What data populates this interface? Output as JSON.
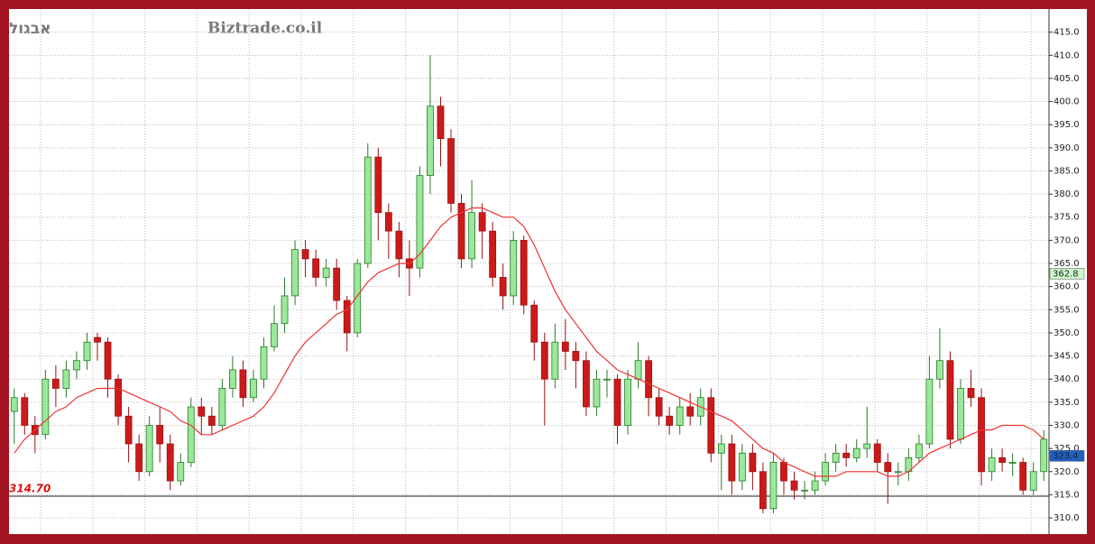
{
  "chart_data": {
    "type": "candlestick",
    "title": "אבגול",
    "subtitle": "Biztrade.co.il",
    "up_color": "#9be89b",
    "down_color": "#cc1a1a",
    "open": [
      333,
      336,
      330,
      328,
      340,
      338,
      342,
      344,
      349,
      348,
      340,
      332,
      326,
      320,
      330,
      326,
      318,
      322,
      334,
      332,
      330,
      338,
      342,
      336,
      340,
      347,
      352,
      358,
      368,
      366,
      362,
      364,
      357,
      350,
      365,
      388,
      376,
      372,
      366,
      364,
      384,
      399,
      392,
      378,
      366,
      376,
      372,
      362,
      358,
      370,
      356,
      348,
      340,
      348,
      346,
      344,
      334,
      340,
      340,
      330,
      340,
      344,
      336,
      332,
      330,
      334,
      332,
      336,
      324,
      326,
      318,
      324,
      320,
      312,
      322,
      318,
      316,
      316,
      318,
      322,
      324,
      323,
      325,
      326,
      322,
      320,
      320,
      323,
      326,
      340,
      344,
      327,
      338,
      336,
      320,
      323,
      322,
      322,
      316,
      320
    ],
    "high": [
      338,
      337,
      332,
      342,
      343,
      344,
      346,
      350,
      350,
      349,
      341,
      334,
      328,
      332,
      334,
      328,
      324,
      336,
      336,
      334,
      340,
      345,
      344,
      342,
      349,
      356,
      362,
      370,
      370,
      368,
      366,
      366,
      358,
      366,
      391,
      390,
      378,
      374,
      370,
      386,
      410,
      401,
      394,
      380,
      383,
      378,
      374,
      365,
      372,
      371,
      357,
      350,
      352,
      353,
      348,
      346,
      342,
      342,
      341,
      342,
      348,
      345,
      338,
      334,
      336,
      337,
      338,
      338,
      328,
      328,
      326,
      326,
      322,
      324,
      323,
      320,
      318,
      320,
      324,
      326,
      326,
      327,
      334,
      327,
      324,
      322,
      325,
      328,
      345,
      351,
      346,
      340,
      342,
      338,
      325,
      325,
      324,
      323,
      322,
      329
    ],
    "low": [
      326,
      328,
      324,
      327,
      334,
      336,
      340,
      342,
      344,
      336,
      330,
      322,
      318,
      319,
      322,
      316,
      317,
      321,
      328,
      328,
      329,
      336,
      334,
      335,
      338,
      346,
      350,
      356,
      362,
      360,
      360,
      355,
      346,
      349,
      364,
      370,
      366,
      362,
      358,
      362,
      380,
      386,
      376,
      364,
      364,
      366,
      360,
      355,
      356,
      354,
      344,
      330,
      338,
      342,
      338,
      332,
      332,
      336,
      326,
      328,
      338,
      332,
      330,
      328,
      328,
      330,
      330,
      322,
      316,
      315,
      316,
      316,
      311,
      311,
      315,
      314,
      314,
      315,
      317,
      320,
      321,
      322,
      323,
      320,
      313,
      317,
      318,
      322,
      325,
      338,
      325,
      326,
      334,
      317,
      318,
      320,
      319,
      315,
      315,
      318
    ],
    "close": [
      336,
      330,
      328,
      340,
      338,
      342,
      344,
      348,
      348,
      340,
      332,
      326,
      320,
      330,
      326,
      318,
      322,
      334,
      332,
      330,
      338,
      342,
      336,
      340,
      347,
      352,
      358,
      368,
      366,
      362,
      364,
      357,
      350,
      365,
      388,
      376,
      372,
      366,
      364,
      384,
      399,
      392,
      378,
      366,
      376,
      372,
      362,
      358,
      370,
      356,
      348,
      340,
      348,
      346,
      344,
      334,
      340,
      340,
      330,
      340,
      344,
      336,
      332,
      330,
      334,
      332,
      336,
      324,
      326,
      318,
      324,
      320,
      312,
      322,
      318,
      316,
      316,
      318,
      322,
      324,
      323,
      325,
      326,
      322,
      320,
      320,
      323,
      326,
      340,
      344,
      327,
      338,
      336,
      320,
      323,
      322,
      322,
      316,
      320,
      327
    ],
    "moving_average": {
      "color": "#ee3333",
      "values": [
        324,
        327,
        329,
        331,
        333,
        334,
        336,
        337,
        338,
        338,
        338,
        337,
        336,
        335,
        334,
        333,
        331,
        330,
        328,
        328,
        329,
        330,
        331,
        332,
        334,
        337,
        341,
        345,
        348,
        350,
        352,
        354,
        355,
        358,
        361,
        363,
        364,
        365,
        365,
        367,
        370,
        373,
        375,
        376,
        377,
        377,
        376,
        375,
        375,
        373,
        369,
        364,
        359,
        355,
        352,
        349,
        346,
        344,
        342,
        341,
        340,
        339,
        338,
        337,
        336,
        335,
        334,
        333,
        332,
        331,
        329,
        327,
        325,
        324,
        322,
        321,
        320,
        319,
        319,
        319,
        320,
        320,
        320,
        320,
        319,
        319,
        320,
        322,
        324,
        325,
        326,
        327,
        328,
        329,
        329,
        330,
        330,
        330,
        329,
        327
      ]
    },
    "ylim": [
      306.5,
      420
    ],
    "yticks": [
      {
        "value": 310,
        "label": "310.0"
      },
      {
        "value": 315,
        "label": "315.0"
      },
      {
        "value": 320,
        "label": "320.0"
      },
      {
        "value": 325,
        "label": "325.0"
      },
      {
        "value": 330,
        "label": "330.0"
      },
      {
        "value": 335,
        "label": "335.0"
      },
      {
        "value": 340,
        "label": "340.0"
      },
      {
        "value": 345,
        "label": "345.0"
      },
      {
        "value": 350,
        "label": "350.0"
      },
      {
        "value": 355,
        "label": "355.0"
      },
      {
        "value": 360,
        "label": "360.0"
      },
      {
        "value": 365,
        "label": "365.0"
      },
      {
        "value": 370,
        "label": "370.0"
      },
      {
        "value": 375,
        "label": "375.0"
      },
      {
        "value": 380,
        "label": "380.0"
      },
      {
        "value": 385,
        "label": "385.0"
      },
      {
        "value": 390,
        "label": "390.0"
      },
      {
        "value": 395,
        "label": "395.0"
      },
      {
        "value": 400,
        "label": "400.0"
      },
      {
        "value": 405,
        "label": "405.0"
      },
      {
        "value": 410,
        "label": "410.0"
      },
      {
        "value": 415,
        "label": "415.0"
      }
    ],
    "grid": true,
    "reference_line": {
      "value": 314.7,
      "label": "314.70",
      "color": "#dd1111"
    },
    "price_markers": [
      {
        "value": 362.8,
        "color": "#ccf5cc",
        "text_color": "#116611"
      },
      {
        "value": 323.4,
        "color": "#1f5fc8",
        "text_color": "#ffffff"
      }
    ]
  }
}
